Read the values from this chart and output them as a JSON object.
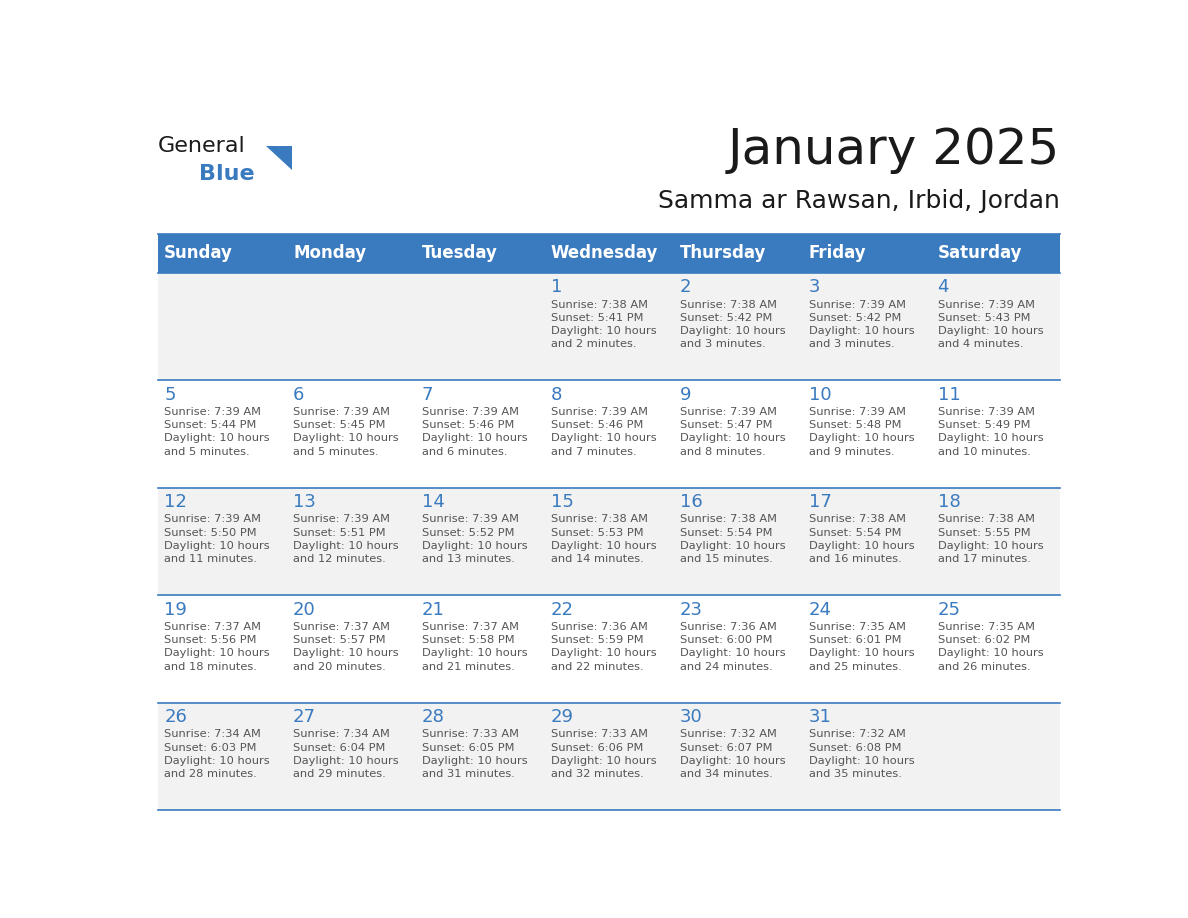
{
  "title": "January 2025",
  "subtitle": "Samma ar Rawsan, Irbid, Jordan",
  "days_of_week": [
    "Sunday",
    "Monday",
    "Tuesday",
    "Wednesday",
    "Thursday",
    "Friday",
    "Saturday"
  ],
  "header_bg": "#3a7abf",
  "header_text": "#ffffff",
  "row_bg_odd": "#f2f2f2",
  "row_bg_even": "#ffffff",
  "grid_line_color": "#3a7abf",
  "day_number_color": "#3a7abf",
  "cell_text_color": "#555555",
  "title_color": "#1a1a1a",
  "subtitle_color": "#1a1a1a",
  "logo_general_color": "#1a1a1a",
  "logo_blue_color": "#3a7abf",
  "weeks": [
    {
      "days": [
        {
          "date": null,
          "info": null
        },
        {
          "date": null,
          "info": null
        },
        {
          "date": null,
          "info": null
        },
        {
          "date": "1",
          "info": "Sunrise: 7:38 AM\nSunset: 5:41 PM\nDaylight: 10 hours\nand 2 minutes."
        },
        {
          "date": "2",
          "info": "Sunrise: 7:38 AM\nSunset: 5:42 PM\nDaylight: 10 hours\nand 3 minutes."
        },
        {
          "date": "3",
          "info": "Sunrise: 7:39 AM\nSunset: 5:42 PM\nDaylight: 10 hours\nand 3 minutes."
        },
        {
          "date": "4",
          "info": "Sunrise: 7:39 AM\nSunset: 5:43 PM\nDaylight: 10 hours\nand 4 minutes."
        }
      ]
    },
    {
      "days": [
        {
          "date": "5",
          "info": "Sunrise: 7:39 AM\nSunset: 5:44 PM\nDaylight: 10 hours\nand 5 minutes."
        },
        {
          "date": "6",
          "info": "Sunrise: 7:39 AM\nSunset: 5:45 PM\nDaylight: 10 hours\nand 5 minutes."
        },
        {
          "date": "7",
          "info": "Sunrise: 7:39 AM\nSunset: 5:46 PM\nDaylight: 10 hours\nand 6 minutes."
        },
        {
          "date": "8",
          "info": "Sunrise: 7:39 AM\nSunset: 5:46 PM\nDaylight: 10 hours\nand 7 minutes."
        },
        {
          "date": "9",
          "info": "Sunrise: 7:39 AM\nSunset: 5:47 PM\nDaylight: 10 hours\nand 8 minutes."
        },
        {
          "date": "10",
          "info": "Sunrise: 7:39 AM\nSunset: 5:48 PM\nDaylight: 10 hours\nand 9 minutes."
        },
        {
          "date": "11",
          "info": "Sunrise: 7:39 AM\nSunset: 5:49 PM\nDaylight: 10 hours\nand 10 minutes."
        }
      ]
    },
    {
      "days": [
        {
          "date": "12",
          "info": "Sunrise: 7:39 AM\nSunset: 5:50 PM\nDaylight: 10 hours\nand 11 minutes."
        },
        {
          "date": "13",
          "info": "Sunrise: 7:39 AM\nSunset: 5:51 PM\nDaylight: 10 hours\nand 12 minutes."
        },
        {
          "date": "14",
          "info": "Sunrise: 7:39 AM\nSunset: 5:52 PM\nDaylight: 10 hours\nand 13 minutes."
        },
        {
          "date": "15",
          "info": "Sunrise: 7:38 AM\nSunset: 5:53 PM\nDaylight: 10 hours\nand 14 minutes."
        },
        {
          "date": "16",
          "info": "Sunrise: 7:38 AM\nSunset: 5:54 PM\nDaylight: 10 hours\nand 15 minutes."
        },
        {
          "date": "17",
          "info": "Sunrise: 7:38 AM\nSunset: 5:54 PM\nDaylight: 10 hours\nand 16 minutes."
        },
        {
          "date": "18",
          "info": "Sunrise: 7:38 AM\nSunset: 5:55 PM\nDaylight: 10 hours\nand 17 minutes."
        }
      ]
    },
    {
      "days": [
        {
          "date": "19",
          "info": "Sunrise: 7:37 AM\nSunset: 5:56 PM\nDaylight: 10 hours\nand 18 minutes."
        },
        {
          "date": "20",
          "info": "Sunrise: 7:37 AM\nSunset: 5:57 PM\nDaylight: 10 hours\nand 20 minutes."
        },
        {
          "date": "21",
          "info": "Sunrise: 7:37 AM\nSunset: 5:58 PM\nDaylight: 10 hours\nand 21 minutes."
        },
        {
          "date": "22",
          "info": "Sunrise: 7:36 AM\nSunset: 5:59 PM\nDaylight: 10 hours\nand 22 minutes."
        },
        {
          "date": "23",
          "info": "Sunrise: 7:36 AM\nSunset: 6:00 PM\nDaylight: 10 hours\nand 24 minutes."
        },
        {
          "date": "24",
          "info": "Sunrise: 7:35 AM\nSunset: 6:01 PM\nDaylight: 10 hours\nand 25 minutes."
        },
        {
          "date": "25",
          "info": "Sunrise: 7:35 AM\nSunset: 6:02 PM\nDaylight: 10 hours\nand 26 minutes."
        }
      ]
    },
    {
      "days": [
        {
          "date": "26",
          "info": "Sunrise: 7:34 AM\nSunset: 6:03 PM\nDaylight: 10 hours\nand 28 minutes."
        },
        {
          "date": "27",
          "info": "Sunrise: 7:34 AM\nSunset: 6:04 PM\nDaylight: 10 hours\nand 29 minutes."
        },
        {
          "date": "28",
          "info": "Sunrise: 7:33 AM\nSunset: 6:05 PM\nDaylight: 10 hours\nand 31 minutes."
        },
        {
          "date": "29",
          "info": "Sunrise: 7:33 AM\nSunset: 6:06 PM\nDaylight: 10 hours\nand 32 minutes."
        },
        {
          "date": "30",
          "info": "Sunrise: 7:32 AM\nSunset: 6:07 PM\nDaylight: 10 hours\nand 34 minutes."
        },
        {
          "date": "31",
          "info": "Sunrise: 7:32 AM\nSunset: 6:08 PM\nDaylight: 10 hours\nand 35 minutes."
        },
        {
          "date": null,
          "info": null
        }
      ]
    }
  ]
}
